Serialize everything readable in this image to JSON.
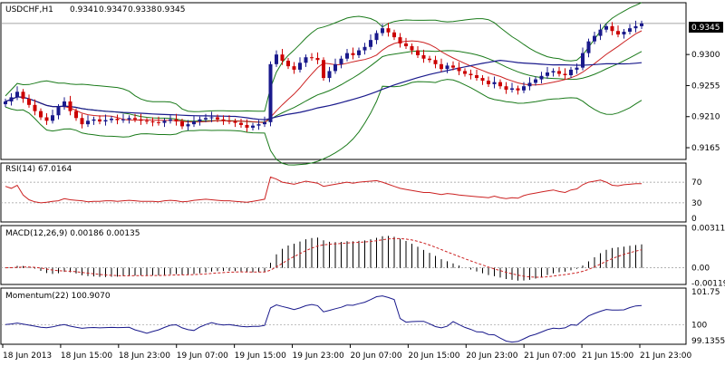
{
  "chart_data": {
    "type": "candlestick",
    "symbol": "USDCHF,H1",
    "ohlc": [
      "0.9341",
      "0.9347",
      "0.9338",
      "0.9345"
    ],
    "current_price": "0.9345",
    "colors": {
      "up": "#1a1a8c",
      "down": "#cc0000",
      "bands": "#1a7a1a",
      "ma_fast": "#cc2222",
      "ma_slow": "#1a1a8c",
      "grid": "#999999"
    },
    "price_axis": {
      "ticks": [
        "0.9300",
        "0.9255",
        "0.9210",
        "0.9165"
      ],
      "values": [
        0.93,
        0.9255,
        0.921,
        0.9165
      ],
      "range": [
        0.9148,
        0.9375
      ]
    },
    "x_labels": [
      "18 Jun 2013",
      "18 Jun 15:00",
      "18 Jun 23:00",
      "19 Jun 07:00",
      "19 Jun 15:00",
      "19 Jun 23:00",
      "20 Jun 07:00",
      "20 Jun 15:00",
      "20 Jun 23:00",
      "21 Jun 07:00",
      "21 Jun 15:00",
      "21 Jun 23:00"
    ],
    "candles_close": [
      0.9232,
      0.9238,
      0.9246,
      0.9236,
      0.9227,
      0.9218,
      0.9209,
      0.9204,
      0.9212,
      0.9224,
      0.9232,
      0.9218,
      0.9208,
      0.9199,
      0.9204,
      0.9206,
      0.9203,
      0.9205,
      0.9207,
      0.9205,
      0.9206,
      0.9208,
      0.9206,
      0.9204,
      0.9203,
      0.9202,
      0.9201,
      0.9204,
      0.9206,
      0.9203,
      0.9196,
      0.9199,
      0.9203,
      0.9206,
      0.9208,
      0.9209,
      0.9206,
      0.9204,
      0.9203,
      0.9201,
      0.9198,
      0.9194,
      0.9197,
      0.9199,
      0.9202,
      0.9286,
      0.93,
      0.9291,
      0.9283,
      0.9278,
      0.9288,
      0.9296,
      0.9295,
      0.9292,
      0.9266,
      0.9276,
      0.9286,
      0.9294,
      0.9302,
      0.9299,
      0.9306,
      0.9311,
      0.9321,
      0.9331,
      0.9338,
      0.9332,
      0.9325,
      0.9316,
      0.9312,
      0.9306,
      0.9299,
      0.9294,
      0.9292,
      0.9286,
      0.9279,
      0.9284,
      0.9281,
      0.9276,
      0.9272,
      0.927,
      0.9266,
      0.9262,
      0.9257,
      0.926,
      0.9254,
      0.9249,
      0.9251,
      0.9248,
      0.9254,
      0.9259,
      0.9264,
      0.9269,
      0.9274,
      0.9276,
      0.9272,
      0.927,
      0.9278,
      0.9281,
      0.9302,
      0.9319,
      0.9327,
      0.9336,
      0.9341,
      0.9334,
      0.9329,
      0.9333,
      0.9338,
      0.9341,
      0.9345
    ],
    "rsi": {
      "label": "RSI(14) 67.0164",
      "ticks": [
        "70",
        "30",
        "0"
      ],
      "values": [
        70,
        30,
        0
      ],
      "range": [
        0,
        100
      ],
      "series": [
        62,
        58,
        64,
        45,
        36,
        32,
        30,
        31,
        33,
        34,
        38,
        36,
        35,
        34,
        32,
        33,
        33,
        34,
        34,
        33,
        34,
        35,
        34,
        33,
        33,
        33,
        32,
        34,
        35,
        34,
        32,
        33,
        35,
        36,
        37,
        36,
        35,
        34,
        34,
        33,
        32,
        31,
        33,
        35,
        37,
        80,
        76,
        70,
        68,
        66,
        69,
        72,
        70,
        68,
        62,
        64,
        66,
        68,
        70,
        68,
        70,
        71,
        72,
        73,
        70,
        66,
        62,
        58,
        56,
        54,
        52,
        50,
        50,
        48,
        46,
        48,
        47,
        45,
        44,
        43,
        42,
        41,
        40,
        43,
        40,
        38,
        40,
        39,
        44,
        47,
        49,
        51,
        53,
        55,
        52,
        50,
        55,
        57,
        65,
        70,
        72,
        74,
        70,
        64,
        63,
        65,
        66,
        67,
        67
      ]
    },
    "macd": {
      "label": "MACD(12,26,9) 0.00186 0.00135",
      "ticks": [
        "0.00311",
        "0.00",
        "-0.00119"
      ],
      "values": [
        0.00311,
        0.0,
        -0.00119
      ],
      "range": [
        -0.0013,
        0.0033
      ]
    },
    "momentum": {
      "label": "Momentum(22) 100.9070",
      "ticks": [
        "101.75",
        "100",
        "99.1355"
      ],
      "values": [
        101.75,
        100,
        99.1355
      ],
      "range": [
        98.95,
        101.95
      ]
    }
  }
}
